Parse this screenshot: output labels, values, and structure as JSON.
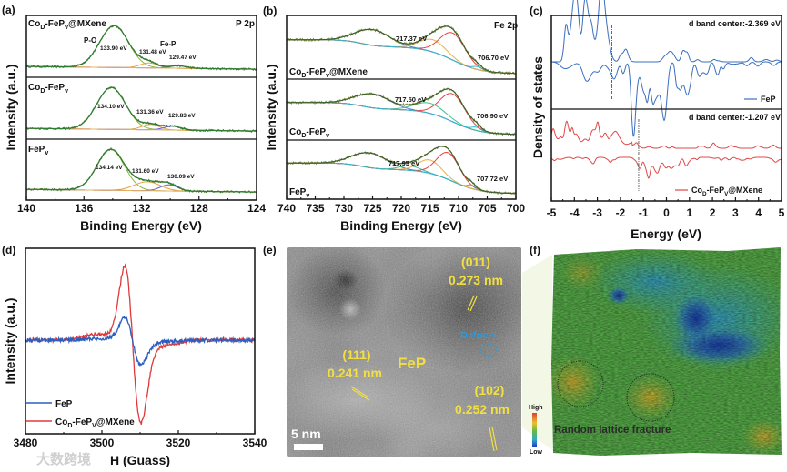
{
  "panel_labels": {
    "a": "(a)",
    "b": "(b)",
    "c": "(c)",
    "d": "(d)",
    "e": "(e)",
    "f": "(f)"
  },
  "chart_data": [
    {
      "id": "a",
      "type": "line",
      "title": "P 2p",
      "xlabel": "Binding Energy (eV)",
      "ylabel": "Intensity (a.u.)",
      "xlim": [
        140,
        124
      ],
      "xticks": [
        140,
        136,
        132,
        128,
        124
      ],
      "annotations": [
        "P-O",
        "Fe-P"
      ],
      "subplots": [
        {
          "name": [
            {
              "t": "Co"
            },
            {
              "t": "D",
              "sub": true
            },
            {
              "t": "-FeP"
            },
            {
              "t": "v",
              "sub": true
            },
            {
              "t": "@MXene"
            }
          ],
          "components": [
            {
              "center": 133.9,
              "height": 1.0,
              "sigma": 1.0,
              "color": "#86b83c"
            },
            {
              "center": 131.48,
              "height": 0.12,
              "sigma": 0.6,
              "color": "#e8a040"
            },
            {
              "center": 129.47,
              "height": 0.06,
              "sigma": 0.6,
              "color": "#6a5acd"
            }
          ],
          "peak_labels": [
            "133.90 eV",
            "131.48 eV",
            "129.47 eV"
          ]
        },
        {
          "name": [
            {
              "t": "Co"
            },
            {
              "t": "D",
              "sub": true
            },
            {
              "t": "-FeP"
            },
            {
              "t": "v",
              "sub": true
            }
          ],
          "components": [
            {
              "center": 134.1,
              "height": 1.0,
              "sigma": 1.0,
              "color": "#86b83c"
            },
            {
              "center": 131.36,
              "height": 0.13,
              "sigma": 0.6,
              "color": "#e8a040"
            },
            {
              "center": 129.83,
              "height": 0.09,
              "sigma": 0.6,
              "color": "#6a5acd"
            }
          ],
          "peak_labels": [
            "134.10 eV",
            "131.36 eV",
            "129.83 eV"
          ]
        },
        {
          "name": [
            {
              "t": "FeP"
            },
            {
              "t": "v",
              "sub": true
            }
          ],
          "components": [
            {
              "center": 134.14,
              "height": 1.0,
              "sigma": 0.95,
              "color": "#86b83c"
            },
            {
              "center": 131.6,
              "height": 0.22,
              "sigma": 0.9,
              "color": "#e8a040"
            },
            {
              "center": 130.09,
              "height": 0.15,
              "sigma": 0.6,
              "color": "#6a5acd"
            }
          ],
          "peak_labels": [
            "134.14 eV",
            "131.60 eV",
            "130.09 eV"
          ]
        }
      ]
    },
    {
      "id": "b",
      "type": "line",
      "title": "Fe 2p",
      "xlabel": "Binding Energy (eV)",
      "ylabel": "Intensity (a.u.)",
      "xlim": [
        740,
        700
      ],
      "xticks": [
        740,
        735,
        730,
        725,
        720,
        715,
        710,
        705,
        700
      ],
      "subplots": [
        {
          "name": [
            {
              "t": "Co"
            },
            {
              "t": "D",
              "sub": true
            },
            {
              "t": "-FeP"
            },
            {
              "t": "v",
              "sub": true
            },
            {
              "t": "@MXene"
            }
          ],
          "components": [
            {
              "center": 725,
              "height": 0.32,
              "sigma": 3.0,
              "color": "#4a7ad8"
            },
            {
              "center": 714.5,
              "height": 0.25,
              "sigma": 2.3,
              "color": "#e8b040"
            },
            {
              "center": 711,
              "height": 0.55,
              "sigma": 2.2,
              "color": "#e84040"
            },
            {
              "center": 706.7,
              "height": 0.06,
              "sigma": 0.8,
              "color": "#30b8d0"
            }
          ],
          "peak_labels": [
            "717.37 eV",
            "706.70 eV"
          ]
        },
        {
          "name": [
            {
              "t": "Co"
            },
            {
              "t": "D",
              "sub": true
            },
            {
              "t": "-FeP"
            },
            {
              "t": "v",
              "sub": true
            }
          ],
          "components": [
            {
              "center": 725,
              "height": 0.3,
              "sigma": 3.0,
              "color": "#4a7ad8"
            },
            {
              "center": 715,
              "height": 0.22,
              "sigma": 2.6,
              "color": "#40c090"
            },
            {
              "center": 711,
              "height": 0.6,
              "sigma": 2.2,
              "color": "#e84040"
            },
            {
              "center": 706.9,
              "height": 0.07,
              "sigma": 0.8,
              "color": "#30b8d0"
            }
          ],
          "peak_labels": [
            "717.50 eV",
            "706.90 eV"
          ]
        },
        {
          "name": [
            {
              "t": "FeP"
            },
            {
              "t": "v",
              "sub": true
            }
          ],
          "components": [
            {
              "center": 725.5,
              "height": 0.33,
              "sigma": 3.0,
              "color": "#4a7ad8"
            },
            {
              "center": 718.5,
              "height": 0.1,
              "sigma": 1.8,
              "color": "#40c090"
            },
            {
              "center": 715,
              "height": 0.3,
              "sigma": 2.0,
              "color": "#e8b040"
            },
            {
              "center": 711.8,
              "height": 0.6,
              "sigma": 2.0,
              "color": "#e84040"
            },
            {
              "center": 707.7,
              "height": 0.08,
              "sigma": 0.7,
              "color": "#30b8d0"
            }
          ],
          "peak_labels": [
            "717.95 eV",
            "707.72 eV"
          ]
        }
      ]
    },
    {
      "id": "c",
      "type": "line",
      "xlabel": "Energy (eV)",
      "ylabel": "Density of states",
      "xlim": [
        -5,
        5
      ],
      "xticks": [
        -5,
        -4,
        -3,
        -2,
        -1,
        0,
        1,
        2,
        3,
        4,
        5
      ],
      "subplots": [
        {
          "legend": [
            {
              "t": "FeP"
            }
          ],
          "color": "#3a6fc0",
          "d_band_center": -2.369,
          "center_label": "d band center:-2.369 eV"
        },
        {
          "legend": [
            {
              "t": "Co"
            },
            {
              "t": "D",
              "sub": true
            },
            {
              "t": "-FeP"
            },
            {
              "t": "V",
              "sub": true
            },
            {
              "t": "@MXene"
            }
          ],
          "color": "#e04848",
          "d_band_center": -1.207,
          "center_label": "d band center:-1.207 eV"
        }
      ]
    },
    {
      "id": "d",
      "type": "line",
      "xlabel": "H (Guass)",
      "ylabel": "Intensity (a.u.)",
      "xlim": [
        3480,
        3540
      ],
      "xticks": [
        3480,
        3500,
        3520,
        3540
      ],
      "series": [
        {
          "name": [
            {
              "t": "FeP"
            }
          ],
          "color": "#2a5fc0",
          "center": 3508,
          "amplitude": 0.3
        },
        {
          "name": [
            {
              "t": "Co"
            },
            {
              "t": "D",
              "sub": true
            },
            {
              "t": "-FeP"
            },
            {
              "t": "V",
              "sub": true
            },
            {
              "t": "@MXene"
            }
          ],
          "color": "#e03838",
          "center": 3508,
          "amplitude": 1.0
        }
      ]
    }
  ],
  "tem": {
    "labels": [
      {
        "hkl": "(011)",
        "d": "0.273 nm"
      },
      {
        "hkl": "(111)",
        "d": "0.241 nm"
      },
      {
        "hkl": "(102)",
        "d": "0.252 nm"
      }
    ],
    "phase": "FeP",
    "defects": "Defects",
    "scale_bar": "5 nm"
  },
  "strain_map": {
    "caption": "Random lattice fracture",
    "colorbar_high": "High",
    "colorbar_low": "Low"
  },
  "watermark": "大数跨境"
}
